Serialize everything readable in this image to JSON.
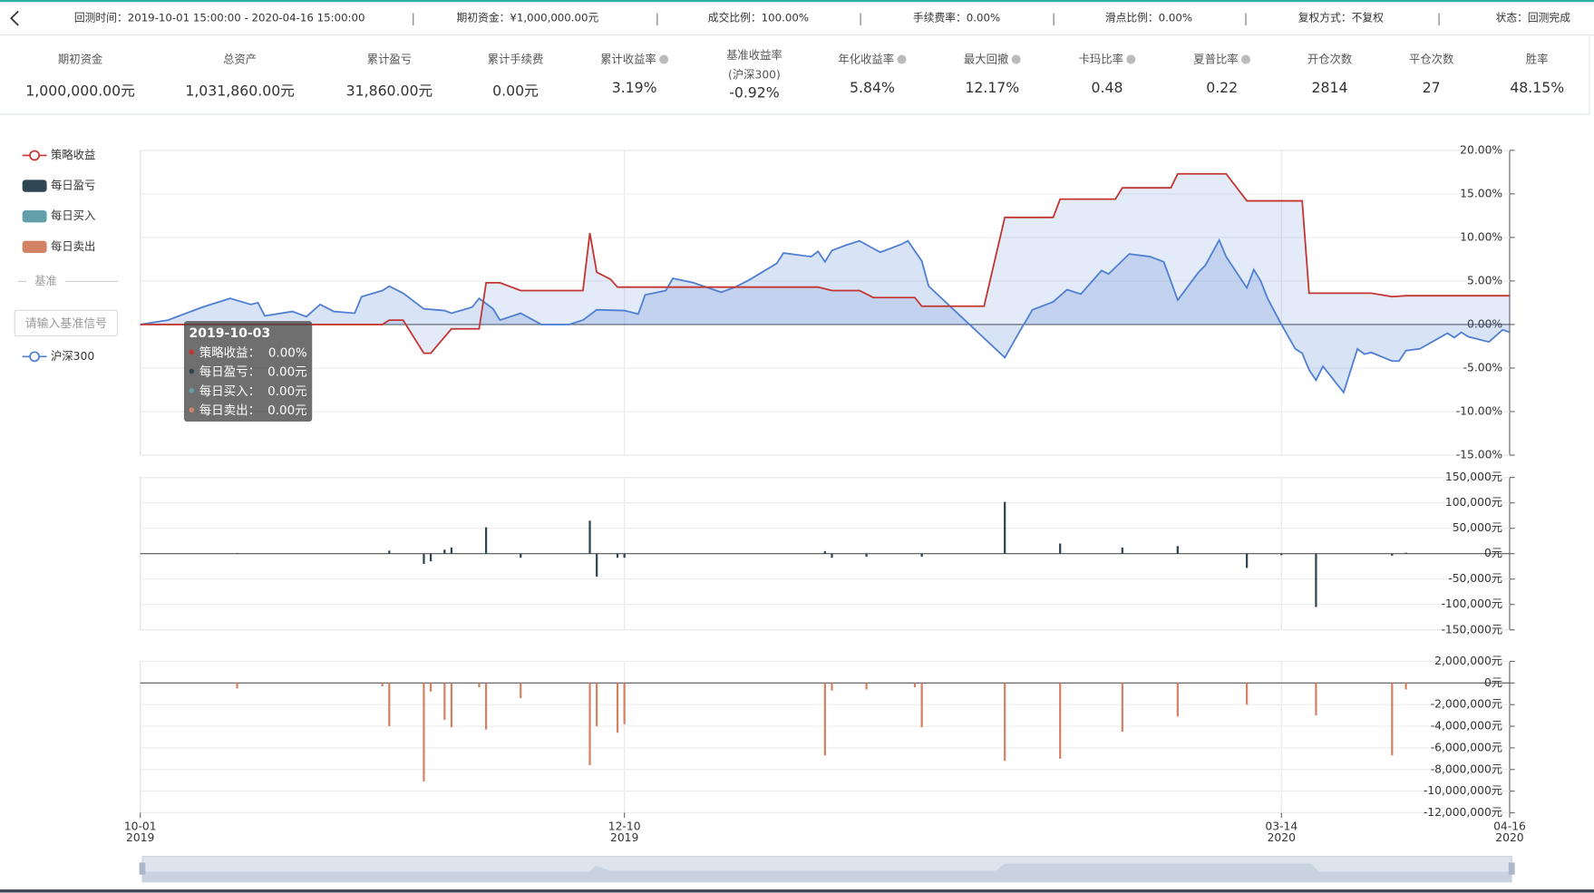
{
  "header": {
    "items": [
      "回测时间：2019-10-01 15:00:00 - 2020-04-16 15:00:00",
      "期初资金：¥1,000,000.00元",
      "成交比例：100.00%",
      "手续费率：0.00%",
      "滑点比例：0.00%",
      "复权方式：不复权",
      "状态：回测完成"
    ]
  },
  "stats": [
    {
      "label": "期初资金",
      "value": "1,000,000.00元"
    },
    {
      "label": "总资产",
      "value": "1,031,860.00元"
    },
    {
      "label": "累计盈亏",
      "value": "31,860.00元"
    },
    {
      "label": "累计手续费",
      "value": "0.00元"
    },
    {
      "label": "累计收益率",
      "value": "3.19%",
      "info": true
    },
    {
      "label": "基准收益率",
      "sublabel": "(沪深300)",
      "value": "-0.92%"
    },
    {
      "label": "年化收益率",
      "value": "5.84%",
      "info": true
    },
    {
      "label": "最大回撤",
      "value": "12.17%",
      "info": true
    },
    {
      "label": "卡玛比率",
      "value": "0.48",
      "info": true
    },
    {
      "label": "夏普比率",
      "value": "0.22",
      "info": true
    },
    {
      "label": "开仓次数",
      "value": "2814"
    },
    {
      "label": "平仓次数",
      "value": "27"
    },
    {
      "label": "胜率",
      "value": "48.15%"
    }
  ],
  "sidebar": {
    "benchmark_title": "基准",
    "input_placeholder": "请输入基准信号"
  },
  "tooltip": {
    "title": "2019-10-03",
    "rows": [
      {
        "label": "策略收益：",
        "value": "0.00%"
      },
      {
        "label": "每日盈亏：",
        "value": "0.00元"
      },
      {
        "label": "每日买入：",
        "value": "0.00元"
      },
      {
        "label": "每日卖出：",
        "value": "0.00元"
      }
    ]
  },
  "chart_data": [
    {
      "type": "line",
      "grid": true,
      "series": [
        {
          "name": "策略收益",
          "color": "#c23531",
          "x": [
            "2019-10-01",
            "2019-11-05",
            "2019-11-06",
            "2019-11-08",
            "2019-11-11",
            "2019-11-12",
            "2019-11-15",
            "2019-11-19",
            "2019-11-20",
            "2019-11-22",
            "2019-11-25",
            "2019-12-04",
            "2019-12-05",
            "2019-12-06",
            "2019-12-08",
            "2019-12-09",
            "2020-01-07",
            "2020-01-09",
            "2020-01-13",
            "2020-01-15",
            "2020-01-21",
            "2020-01-22",
            "2020-01-31",
            "2020-02-03",
            "2020-02-10",
            "2020-02-11",
            "2020-02-19",
            "2020-02-20",
            "2020-02-27",
            "2020-02-28",
            "2020-03-06",
            "2020-03-09",
            "2020-03-17",
            "2020-03-18",
            "2020-03-27",
            "2020-03-30",
            "2020-04-01",
            "2020-04-16"
          ],
          "values": [
            0,
            0,
            0.5,
            0.5,
            -3.3,
            -3.3,
            -0.5,
            -0.5,
            4.8,
            4.8,
            3.9,
            3.9,
            10.5,
            6,
            5.2,
            4.3,
            4.3,
            3.9,
            3.9,
            3.1,
            3.1,
            2.1,
            2.1,
            12.3,
            12.3,
            14.4,
            14.4,
            15.7,
            15.7,
            17.3,
            17.3,
            14.2,
            14.2,
            3.6,
            3.6,
            3.2,
            3.3,
            3.3
          ]
        },
        {
          "name": "沪深300",
          "color": "#4f7fd2",
          "x": [
            "2019-10-01",
            "2019-10-05",
            "2019-10-10",
            "2019-10-14",
            "2019-10-17",
            "2019-10-18",
            "2019-10-19",
            "2019-10-23",
            "2019-10-25",
            "2019-10-27",
            "2019-10-29",
            "2019-11-01",
            "2019-11-02",
            "2019-11-05",
            "2019-11-06",
            "2019-11-08",
            "2019-11-11",
            "2019-11-14",
            "2019-11-15",
            "2019-11-18",
            "2019-11-19",
            "2019-11-21",
            "2019-11-22",
            "2019-11-25",
            "2019-11-28",
            "2019-12-02",
            "2019-12-04",
            "2019-12-06",
            "2019-12-10",
            "2019-12-12",
            "2019-12-13",
            "2019-12-16",
            "2019-12-17",
            "2019-12-20",
            "2019-12-24",
            "2019-12-26",
            "2019-12-28",
            "2020-01-01",
            "2020-01-02",
            "2020-01-06",
            "2020-01-07",
            "2020-01-08",
            "2020-01-09",
            "2020-01-11",
            "2020-01-13",
            "2020-01-16",
            "2020-01-19",
            "2020-01-20",
            "2020-01-22",
            "2020-01-23",
            "2020-02-03",
            "2020-02-05",
            "2020-02-07",
            "2020-02-10",
            "2020-02-12",
            "2020-02-14",
            "2020-02-17",
            "2020-02-18",
            "2020-02-21",
            "2020-02-24",
            "2020-02-26",
            "2020-02-28",
            "2020-03-02",
            "2020-03-03",
            "2020-03-05",
            "2020-03-06",
            "2020-03-09",
            "2020-03-10",
            "2020-03-11",
            "2020-03-12",
            "2020-03-14",
            "2020-03-16",
            "2020-03-17",
            "2020-03-18",
            "2020-03-19",
            "2020-03-20",
            "2020-03-23",
            "2020-03-25",
            "2020-03-26",
            "2020-03-27",
            "2020-03-30",
            "2020-03-31",
            "2020-04-01",
            "2020-04-03",
            "2020-04-07",
            "2020-04-08",
            "2020-04-09",
            "2020-04-10",
            "2020-04-13",
            "2020-04-15",
            "2020-04-16"
          ],
          "values": [
            0,
            0.5,
            2,
            3,
            2.3,
            2.5,
            1,
            1.5,
            0.9,
            2.3,
            1.5,
            1.3,
            3.2,
            3.9,
            4.4,
            3.6,
            1.8,
            1.6,
            1.3,
            2,
            3,
            1.8,
            0.5,
            1.3,
            0,
            0,
            0.5,
            1.7,
            1.6,
            1.2,
            3.4,
            3.9,
            5.3,
            4.8,
            3.7,
            4.3,
            5.1,
            7,
            8.2,
            7.8,
            8.4,
            7.2,
            8.5,
            9.1,
            9.6,
            8.3,
            9.2,
            9.6,
            7.3,
            4.4,
            -3.8,
            -1,
            1.7,
            2.6,
            4,
            3.5,
            6.2,
            5.8,
            8.1,
            7.8,
            7.2,
            2.8,
            6,
            6.8,
            9.7,
            7.8,
            4.2,
            6.3,
            5,
            3,
            0,
            -2.8,
            -3.3,
            -5.2,
            -6.4,
            -4.8,
            -7.8,
            -2.8,
            -3.4,
            -3.2,
            -4.2,
            -4.2,
            -3,
            -2.8,
            -1,
            -1.5,
            -0.9,
            -1.4,
            -2,
            -0.6,
            -0.9
          ]
        }
      ],
      "ylim": [
        -15,
        20
      ],
      "yticks": [
        {
          "value": 20,
          "label": "20.00%"
        },
        {
          "value": 15,
          "label": "15.00%"
        },
        {
          "value": 10,
          "label": "10.00%"
        },
        {
          "value": 5,
          "label": "5.00%"
        },
        {
          "value": 0,
          "label": "0.00%"
        },
        {
          "value": -5,
          "label": "-5.00%"
        },
        {
          "value": -10,
          "label": "-10.00%"
        },
        {
          "value": -15,
          "label": "-15.00%"
        }
      ]
    },
    {
      "type": "bar",
      "grid": true,
      "series": [
        {
          "name": "每日盈亏",
          "color": "#2f4554",
          "x": [
            "2019-10-15",
            "2019-11-06",
            "2019-11-11",
            "2019-11-12",
            "2019-11-14",
            "2019-11-15",
            "2019-11-20",
            "2019-11-25",
            "2019-12-05",
            "2019-12-06",
            "2019-12-09",
            "2019-12-10",
            "2020-01-08",
            "2020-01-09",
            "2020-01-14",
            "2020-01-22",
            "2020-02-03",
            "2020-02-11",
            "2020-02-20",
            "2020-02-28",
            "2020-03-09",
            "2020-03-14",
            "2020-03-19",
            "2020-03-30",
            "2020-04-01"
          ],
          "values": [
            1000,
            6000,
            -20000,
            -15000,
            8000,
            12000,
            52000,
            -8000,
            65000,
            -45000,
            -8000,
            -8000,
            5000,
            -8000,
            -6000,
            -6000,
            102000,
            20000,
            12000,
            15000,
            -28000,
            -3000,
            -105000,
            -4000,
            2000
          ]
        }
      ],
      "ylim": [
        -150000,
        150000
      ],
      "yticks": [
        {
          "value": 150000,
          "label": "150,000元"
        },
        {
          "value": 100000,
          "label": "100,000元"
        },
        {
          "value": 50000,
          "label": "50,000元"
        },
        {
          "value": 0,
          "label": "0元"
        },
        {
          "value": -50000,
          "label": "-50,000元"
        },
        {
          "value": -100000,
          "label": "-100,000元"
        },
        {
          "value": -150000,
          "label": "-150,000元"
        }
      ]
    },
    {
      "type": "bar",
      "grid": true,
      "series": [
        {
          "name": "每日买入",
          "color": "#61a0a8",
          "x": [],
          "values": []
        },
        {
          "name": "每日卖出",
          "color": "#d48265",
          "x": [
            "2019-10-15",
            "2019-11-05",
            "2019-11-06",
            "2019-11-11",
            "2019-11-12",
            "2019-11-14",
            "2019-11-15",
            "2019-11-19",
            "2019-11-20",
            "2019-11-25",
            "2019-12-05",
            "2019-12-06",
            "2019-12-09",
            "2019-12-10",
            "2020-01-08",
            "2020-01-09",
            "2020-01-14",
            "2020-01-21",
            "2020-01-22",
            "2020-02-03",
            "2020-02-11",
            "2020-02-20",
            "2020-02-28",
            "2020-03-09",
            "2020-03-19",
            "2020-03-30",
            "2020-04-01"
          ],
          "values": [
            -500000,
            -300000,
            -4000000,
            -9100000,
            -800000,
            -3400000,
            -4100000,
            -400000,
            -4300000,
            -1400000,
            -7600000,
            -4000000,
            -4600000,
            -3800000,
            -6700000,
            -700000,
            -600000,
            -400000,
            -4100000,
            -7200000,
            -7000000,
            -4500000,
            -3100000,
            -2000000,
            -3000000,
            -6700000,
            -600000
          ]
        }
      ],
      "ylim": [
        -12000000,
        2000000
      ],
      "yticks": [
        {
          "value": 2000000,
          "label": "2,000,000元"
        },
        {
          "value": 0,
          "label": "0元"
        },
        {
          "value": -2000000,
          "label": "-2,000,000元"
        },
        {
          "value": -4000000,
          "label": "-4,000,000元"
        },
        {
          "value": -6000000,
          "label": "-6,000,000元"
        },
        {
          "value": -8000000,
          "label": "-8,000,000元"
        },
        {
          "value": -10000000,
          "label": "-10,000,000元"
        },
        {
          "value": -12000000,
          "label": "-12,000,000元"
        }
      ],
      "xlim": [
        "2019-10-01",
        "2020-04-16"
      ],
      "xticks": [
        {
          "value": "2019-10-01",
          "label": [
            "10-01",
            "2019"
          ]
        },
        {
          "value": "2019-12-10",
          "label": [
            "12-10",
            "2019"
          ]
        },
        {
          "value": "2020-03-14",
          "label": [
            "03-14",
            "2020"
          ]
        },
        {
          "value": "2020-04-16",
          "label": [
            "04-16",
            "2020"
          ]
        }
      ]
    }
  ]
}
